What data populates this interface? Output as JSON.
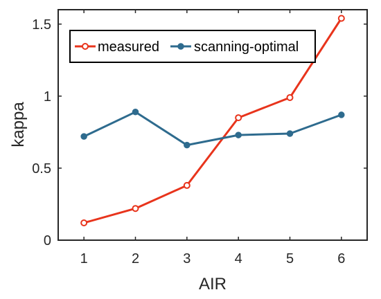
{
  "chart_data": {
    "type": "line",
    "xlabel": "AIR",
    "ylabel": "kappa",
    "xlim": [
      0.5,
      6.5
    ],
    "ylim": [
      0,
      1.6
    ],
    "x_ticks": [
      1,
      2,
      3,
      4,
      5,
      6
    ],
    "x_tick_labels": [
      "1",
      "2",
      "3",
      "4",
      "5",
      "6"
    ],
    "y_ticks": [
      0,
      0.5,
      1,
      1.5
    ],
    "y_tick_labels": [
      "0",
      "0.5",
      "1",
      "1.5"
    ],
    "grid": false,
    "legend_position": "top-left",
    "series": [
      {
        "name": "measured",
        "color": "#e8341c",
        "marker": "open-circle",
        "x": [
          1,
          2,
          3,
          4,
          5,
          6
        ],
        "values": [
          0.12,
          0.22,
          0.38,
          0.85,
          0.99,
          1.54
        ]
      },
      {
        "name": "scanning-optimal",
        "color": "#2e6b8e",
        "marker": "filled-circle",
        "x": [
          1,
          2,
          3,
          4,
          5,
          6
        ],
        "values": [
          0.72,
          0.89,
          0.66,
          0.73,
          0.74,
          0.87
        ]
      }
    ]
  }
}
